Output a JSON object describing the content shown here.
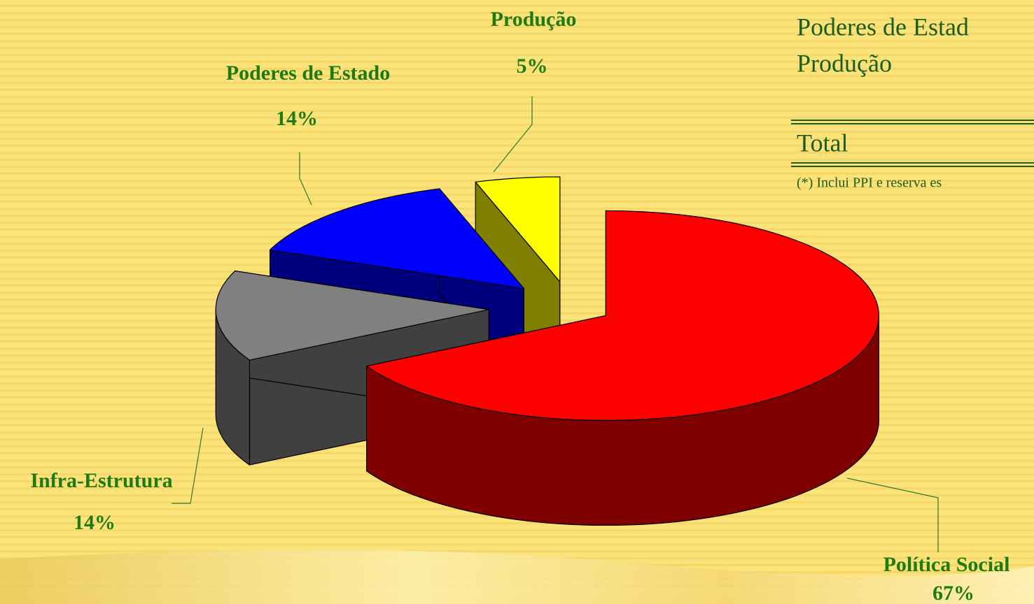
{
  "chart_data": {
    "type": "pie3d",
    "categories": [
      "Política Social",
      "Infra-Estrutura",
      "Poderes de Estado",
      "Produção"
    ],
    "values": [
      67,
      14,
      14,
      5
    ],
    "value_labels": [
      "67%",
      "14%",
      "14%",
      "5%"
    ],
    "colors": [
      "#ff0000",
      "#808080",
      "#0000ff",
      "#ffff00"
    ],
    "side_colors": [
      "#7f0000",
      "#404040",
      "#00007f",
      "#7f7f00"
    ],
    "annotations": [
      "Poderes de Estad",
      "Produção",
      "Total",
      "(*) Inclui PPI e reserva es"
    ]
  }
}
